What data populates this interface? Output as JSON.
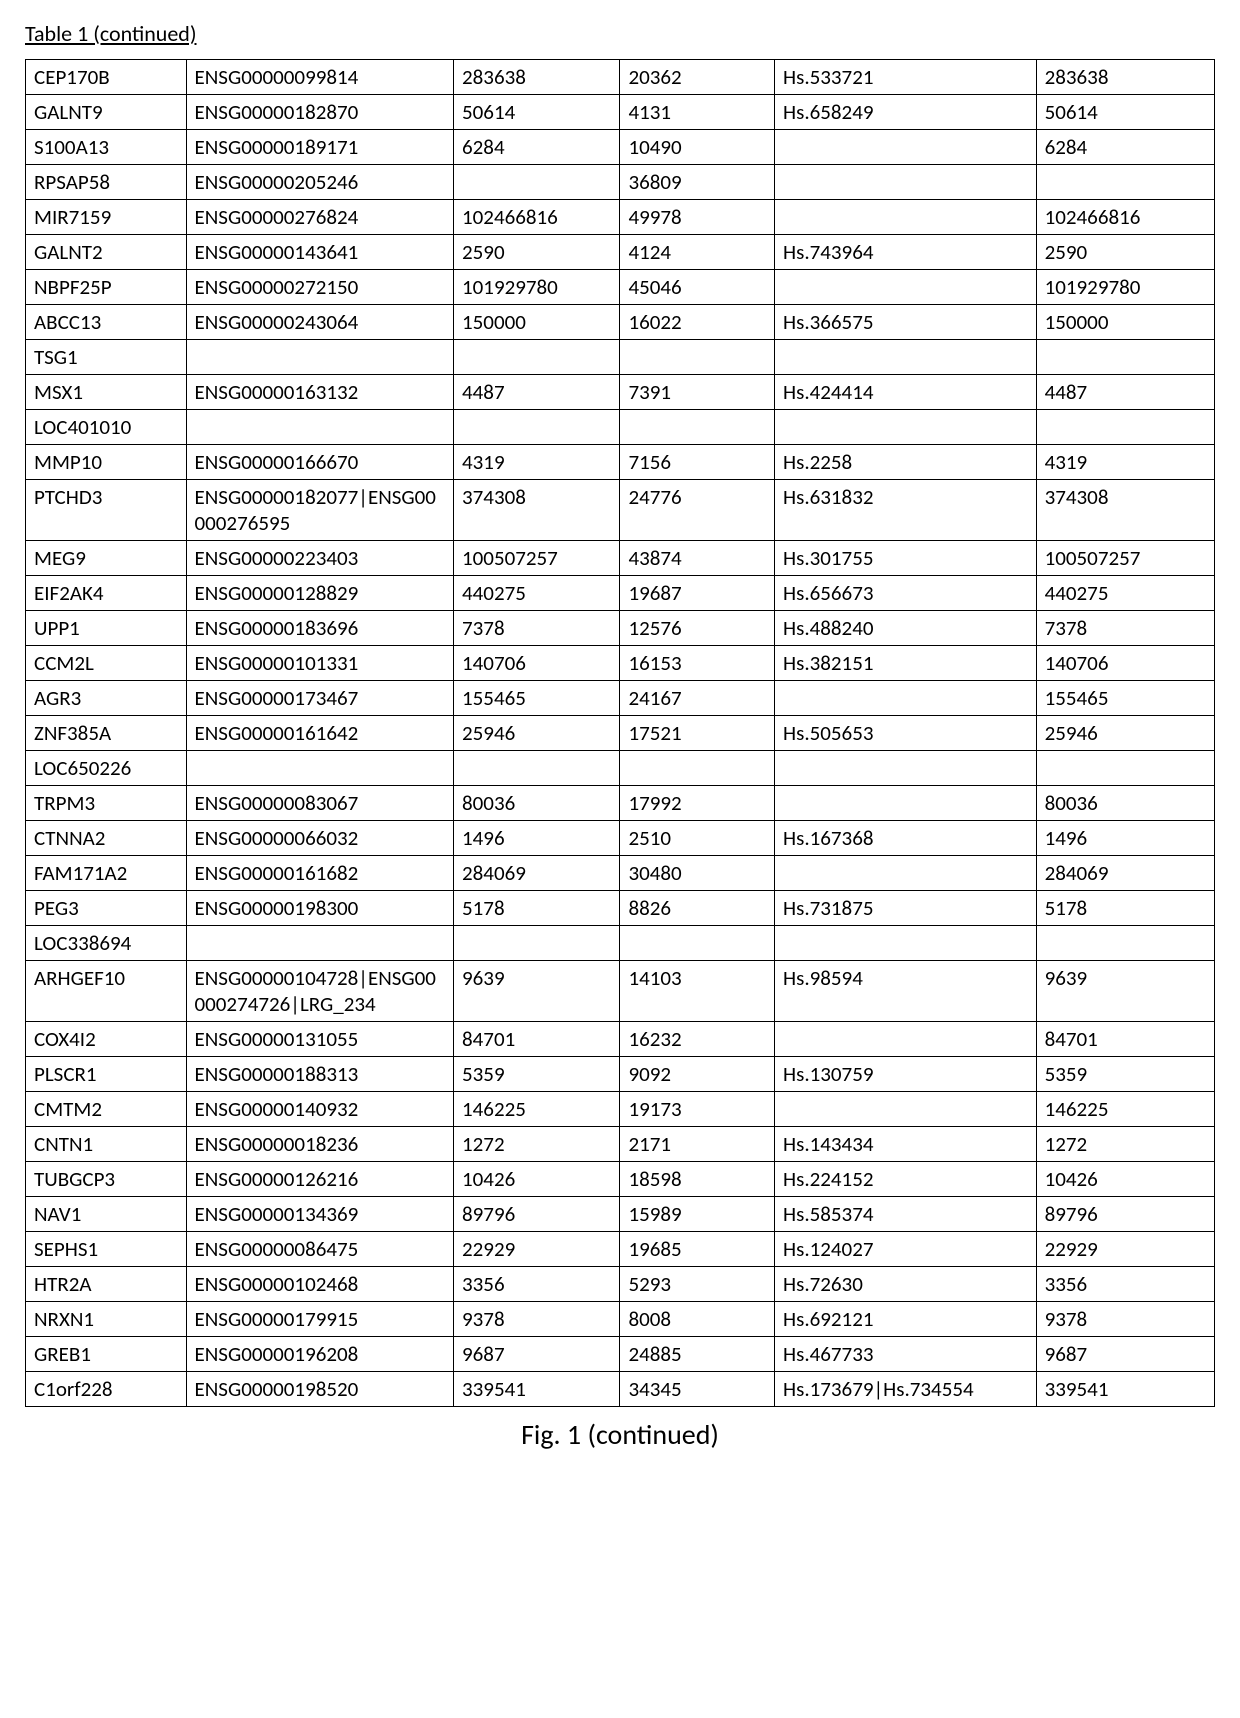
{
  "title": "Table 1 (continued)",
  "caption": "Fig. 1 (continued)",
  "rows": [
    {
      "c1": "CEP170B",
      "c2": "ENSG00000099814",
      "c3": "283638",
      "c4": "20362",
      "c5": "Hs.533721",
      "c6": "283638"
    },
    {
      "c1": "GALNT9",
      "c2": "ENSG00000182870",
      "c3": "50614",
      "c4": "4131",
      "c5": "Hs.658249",
      "c6": "50614"
    },
    {
      "c1": "S100A13",
      "c2": "ENSG00000189171",
      "c3": "6284",
      "c4": "10490",
      "c5": "",
      "c6": "6284"
    },
    {
      "c1": "RPSAP58",
      "c2": "ENSG00000205246",
      "c3": "",
      "c4": "36809",
      "c5": "",
      "c6": ""
    },
    {
      "c1": "MIR7159",
      "c2": "ENSG00000276824",
      "c3": "102466816",
      "c4": "49978",
      "c5": "",
      "c6": "102466816"
    },
    {
      "c1": "GALNT2",
      "c2": "ENSG00000143641",
      "c3": "2590",
      "c4": "4124",
      "c5": "Hs.743964",
      "c6": "2590"
    },
    {
      "c1": "NBPF25P",
      "c2": "ENSG00000272150",
      "c3": "101929780",
      "c4": "45046",
      "c5": "",
      "c6": "101929780"
    },
    {
      "c1": "ABCC13",
      "c2": "ENSG00000243064",
      "c3": "150000",
      "c4": "16022",
      "c5": "Hs.366575",
      "c6": "150000"
    },
    {
      "c1": "TSG1",
      "c2": "",
      "c3": "",
      "c4": "",
      "c5": "",
      "c6": ""
    },
    {
      "c1": "MSX1",
      "c2": "ENSG00000163132",
      "c3": "4487",
      "c4": "7391",
      "c5": "Hs.424414",
      "c6": "4487"
    },
    {
      "c1": "LOC401010",
      "c2": "",
      "c3": "",
      "c4": "",
      "c5": "",
      "c6": ""
    },
    {
      "c1": "MMP10",
      "c2": "ENSG00000166670",
      "c3": "4319",
      "c4": "7156",
      "c5": "Hs.2258",
      "c6": "4319"
    },
    {
      "c1": "PTCHD3",
      "c2": "ENSG00000182077|ENSG00000276595",
      "c3": "374308",
      "c4": "24776",
      "c5": "Hs.631832",
      "c6": "374308"
    },
    {
      "c1": "MEG9",
      "c2": "ENSG00000223403",
      "c3": "100507257",
      "c4": "43874",
      "c5": "Hs.301755",
      "c6": "100507257"
    },
    {
      "c1": "EIF2AK4",
      "c2": "ENSG00000128829",
      "c3": "440275",
      "c4": "19687",
      "c5": "Hs.656673",
      "c6": "440275"
    },
    {
      "c1": "UPP1",
      "c2": "ENSG00000183696",
      "c3": "7378",
      "c4": "12576",
      "c5": "Hs.488240",
      "c6": "7378"
    },
    {
      "c1": "CCM2L",
      "c2": "ENSG00000101331",
      "c3": "140706",
      "c4": "16153",
      "c5": "Hs.382151",
      "c6": "140706"
    },
    {
      "c1": "AGR3",
      "c2": "ENSG00000173467",
      "c3": "155465",
      "c4": "24167",
      "c5": "",
      "c6": "155465"
    },
    {
      "c1": "ZNF385A",
      "c2": "ENSG00000161642",
      "c3": "25946",
      "c4": "17521",
      "c5": "Hs.505653",
      "c6": "25946"
    },
    {
      "c1": "LOC650226",
      "c2": "",
      "c3": "",
      "c4": "",
      "c5": "",
      "c6": ""
    },
    {
      "c1": "TRPM3",
      "c2": "ENSG00000083067",
      "c3": "80036",
      "c4": "17992",
      "c5": "",
      "c6": "80036"
    },
    {
      "c1": "CTNNA2",
      "c2": "ENSG00000066032",
      "c3": "1496",
      "c4": "2510",
      "c5": "Hs.167368",
      "c6": "1496"
    },
    {
      "c1": "FAM171A2",
      "c2": "ENSG00000161682",
      "c3": "284069",
      "c4": "30480",
      "c5": "",
      "c6": "284069"
    },
    {
      "c1": "PEG3",
      "c2": "ENSG00000198300",
      "c3": "5178",
      "c4": "8826",
      "c5": "Hs.731875",
      "c6": "5178"
    },
    {
      "c1": "LOC338694",
      "c2": "",
      "c3": "",
      "c4": "",
      "c5": "",
      "c6": ""
    },
    {
      "c1": "ARHGEF10",
      "c2": "ENSG00000104728|ENSG00000274726|LRG_234",
      "c3": "9639",
      "c4": "14103",
      "c5": "Hs.98594",
      "c6": "9639"
    },
    {
      "c1": "COX4I2",
      "c2": "ENSG00000131055",
      "c3": "84701",
      "c4": "16232",
      "c5": "",
      "c6": "84701"
    },
    {
      "c1": "PLSCR1",
      "c2": "ENSG00000188313",
      "c3": "5359",
      "c4": "9092",
      "c5": "Hs.130759",
      "c6": "5359"
    },
    {
      "c1": "CMTM2",
      "c2": "ENSG00000140932",
      "c3": "146225",
      "c4": "19173",
      "c5": "",
      "c6": "146225"
    },
    {
      "c1": "CNTN1",
      "c2": "ENSG00000018236",
      "c3": "1272",
      "c4": "2171",
      "c5": "Hs.143434",
      "c6": "1272"
    },
    {
      "c1": "TUBGCP3",
      "c2": "ENSG00000126216",
      "c3": "10426",
      "c4": "18598",
      "c5": "Hs.224152",
      "c6": "10426"
    },
    {
      "c1": "NAV1",
      "c2": "ENSG00000134369",
      "c3": "89796",
      "c4": "15989",
      "c5": "Hs.585374",
      "c6": "89796"
    },
    {
      "c1": "SEPHS1",
      "c2": "ENSG00000086475",
      "c3": "22929",
      "c4": "19685",
      "c5": "Hs.124027",
      "c6": "22929"
    },
    {
      "c1": "HTR2A",
      "c2": "ENSG00000102468",
      "c3": "3356",
      "c4": "5293",
      "c5": "Hs.72630",
      "c6": "3356"
    },
    {
      "c1": "NRXN1",
      "c2": "ENSG00000179915",
      "c3": "9378",
      "c4": "8008",
      "c5": "Hs.692121",
      "c6": "9378"
    },
    {
      "c1": "GREB1",
      "c2": "ENSG00000196208",
      "c3": "9687",
      "c4": "24885",
      "c5": "Hs.467733",
      "c6": "9687"
    },
    {
      "c1": "C1orf228",
      "c2": "ENSG00000198520",
      "c3": "339541",
      "c4": "34345",
      "c5": "Hs.173679|Hs.734554",
      "c6": "339541"
    }
  ]
}
